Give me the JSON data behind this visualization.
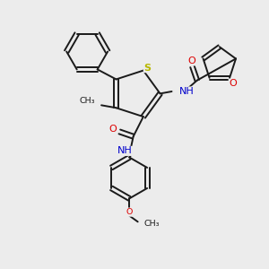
{
  "background_color": "#ececec",
  "bond_color": "#1a1a1a",
  "S_color": "#b8b800",
  "O_color": "#dd0000",
  "N_color": "#0000cc",
  "figsize": [
    3.0,
    3.0
  ],
  "dpi": 100,
  "xlim": [
    0,
    10
  ],
  "ylim": [
    0,
    10
  ]
}
